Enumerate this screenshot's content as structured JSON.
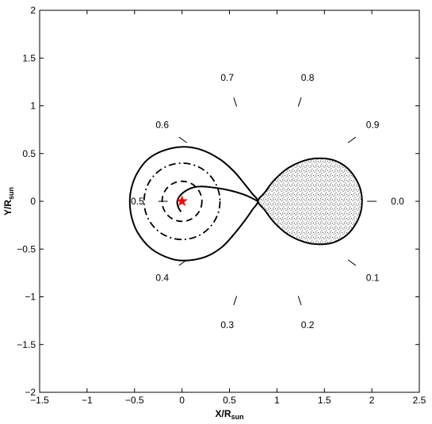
{
  "chart_data": {
    "type": "line",
    "title": "",
    "xlabel": "X/R",
    "xlabel_sub": "sun",
    "ylabel": "Y/R",
    "ylabel_sub": "sun",
    "xlim": [
      -1.5,
      2.5
    ],
    "ylim": [
      -2,
      2
    ],
    "x_ticks": [
      -1.5,
      -1,
      -0.5,
      0,
      0.5,
      1,
      1.5,
      2,
      2.5
    ],
    "x_tick_labels": [
      "−1.5",
      "−1",
      "−0.5",
      "0",
      "0.5",
      "1",
      "1.5",
      "2",
      "2.5"
    ],
    "y_ticks": [
      -2,
      -1.5,
      -1,
      -0.5,
      0,
      0.5,
      1,
      1.5,
      2
    ],
    "y_tick_labels": [
      "−2",
      "−1.5",
      "−1",
      "−0.5",
      "0",
      "0.5",
      "1",
      "1.5",
      "2"
    ],
    "grid": false,
    "star": {
      "x": 0,
      "y": 0,
      "color": "#ff0000"
    },
    "roche_lobe_primary": [
      [
        0.8,
        0.0
      ],
      [
        0.74,
        0.08
      ],
      [
        0.66,
        0.18
      ],
      [
        0.55,
        0.31
      ],
      [
        0.4,
        0.44
      ],
      [
        0.2,
        0.54
      ],
      [
        0.0,
        0.57
      ],
      [
        -0.2,
        0.53
      ],
      [
        -0.36,
        0.44
      ],
      [
        -0.47,
        0.3
      ],
      [
        -0.53,
        0.15
      ],
      [
        -0.55,
        0.0
      ],
      [
        -0.53,
        -0.17
      ],
      [
        -0.46,
        -0.34
      ],
      [
        -0.32,
        -0.5
      ],
      [
        -0.12,
        -0.6
      ],
      [
        0.05,
        -0.62
      ],
      [
        0.25,
        -0.58
      ],
      [
        0.42,
        -0.48
      ],
      [
        0.56,
        -0.33
      ],
      [
        0.67,
        -0.19
      ],
      [
        0.74,
        -0.09
      ],
      [
        0.8,
        0.0
      ]
    ],
    "roche_lobe_secondary": [
      [
        0.8,
        0.0
      ],
      [
        0.87,
        0.09
      ],
      [
        0.97,
        0.22
      ],
      [
        1.12,
        0.35
      ],
      [
        1.3,
        0.43
      ],
      [
        1.45,
        0.45
      ],
      [
        1.6,
        0.43
      ],
      [
        1.74,
        0.35
      ],
      [
        1.84,
        0.22
      ],
      [
        1.89,
        0.08
      ],
      [
        1.89,
        -0.08
      ],
      [
        1.84,
        -0.22
      ],
      [
        1.74,
        -0.35
      ],
      [
        1.6,
        -0.43
      ],
      [
        1.45,
        -0.45
      ],
      [
        1.3,
        -0.43
      ],
      [
        1.12,
        -0.35
      ],
      [
        0.97,
        -0.22
      ],
      [
        0.87,
        -0.09
      ],
      [
        0.8,
        0.0
      ]
    ],
    "accretion_stream": [
      [
        0.8,
        0.0
      ],
      [
        0.68,
        0.06
      ],
      [
        0.52,
        0.11
      ],
      [
        0.36,
        0.14
      ],
      [
        0.22,
        0.155
      ],
      [
        0.12,
        0.145
      ],
      [
        0.04,
        0.11
      ],
      [
        -0.02,
        0.06
      ],
      [
        -0.05,
        0.0
      ],
      [
        -0.04,
        -0.06
      ],
      [
        -0.01,
        -0.11
      ]
    ],
    "circle_dashdot": {
      "cx": 0,
      "cy": 0,
      "r": 0.4
    },
    "circle_dashed": {
      "cx": 0,
      "cy": 0,
      "r": 0.21
    },
    "phase_markers": [
      {
        "label": "0.0",
        "phase": 0.0
      },
      {
        "label": "0.1",
        "phase": 0.1
      },
      {
        "label": "0.2",
        "phase": 0.2
      },
      {
        "label": "0.3",
        "phase": 0.3
      },
      {
        "label": "0.4",
        "phase": 0.4
      },
      {
        "label": "0.5",
        "phase": 0.5
      },
      {
        "label": "0.6",
        "phase": 0.6
      },
      {
        "label": "0.7",
        "phase": 0.7
      },
      {
        "label": "0.8",
        "phase": 0.8
      },
      {
        "label": "0.9",
        "phase": 0.9
      }
    ]
  }
}
